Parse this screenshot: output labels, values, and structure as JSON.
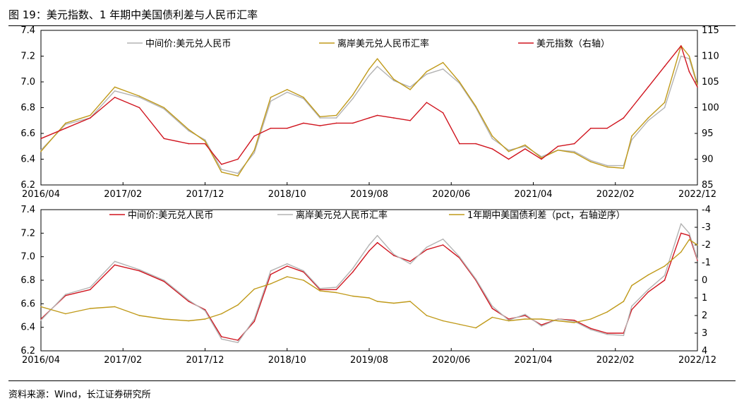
{
  "figure": {
    "title": "图 19：美元指数、1 年期中美国债利差与人民币汇率",
    "source": "资料来源：Wind，长江证券研究所"
  },
  "chart_data": [
    {
      "type": "line",
      "title": "",
      "x_ticks": [
        "2016/04",
        "2017/02",
        "2017/12",
        "2018/10",
        "2019/08",
        "2020/06",
        "2021/04",
        "2022/02",
        "2022/12"
      ],
      "x_range": [
        "2016/04",
        "2022/12"
      ],
      "y_left": {
        "ticks": [
          6.2,
          6.4,
          6.6,
          6.8,
          7.0,
          7.2,
          7.4
        ],
        "range": [
          6.2,
          7.4
        ]
      },
      "y_right": {
        "ticks": [
          85,
          90,
          95,
          100,
          105,
          110,
          115
        ],
        "range": [
          85,
          115
        ]
      },
      "legend_position": "top",
      "grid": false,
      "series": [
        {
          "name": "中间价:美元兑人民币",
          "color": "#b3b3b3",
          "axis": "left",
          "x": [
            "2016/04",
            "2016/07",
            "2016/10",
            "2017/01",
            "2017/04",
            "2017/07",
            "2017/10",
            "2017/12",
            "2018/02",
            "2018/04",
            "2018/06",
            "2018/08",
            "2018/10",
            "2018/12",
            "2019/02",
            "2019/04",
            "2019/06",
            "2019/08",
            "2019/09",
            "2019/11",
            "2020/01",
            "2020/03",
            "2020/05",
            "2020/07",
            "2020/09",
            "2020/11",
            "2021/01",
            "2021/03",
            "2021/05",
            "2021/07",
            "2021/09",
            "2021/11",
            "2022/01",
            "2022/03",
            "2022/04",
            "2022/06",
            "2022/08",
            "2022/10",
            "2022/11",
            "2022/12"
          ],
          "y": [
            6.47,
            6.67,
            6.72,
            6.93,
            6.88,
            6.79,
            6.62,
            6.55,
            6.32,
            6.29,
            6.45,
            6.85,
            6.92,
            6.87,
            6.72,
            6.72,
            6.87,
            7.05,
            7.12,
            7.01,
            6.96,
            7.06,
            7.1,
            6.99,
            6.8,
            6.56,
            6.47,
            6.5,
            6.42,
            6.47,
            6.46,
            6.39,
            6.35,
            6.35,
            6.55,
            6.7,
            6.8,
            7.2,
            7.18,
            6.97
          ]
        },
        {
          "name": "离岸美元兑人民币汇率",
          "color": "#c09a1a",
          "axis": "left",
          "x": [
            "2016/04",
            "2016/07",
            "2016/10",
            "2017/01",
            "2017/04",
            "2017/07",
            "2017/10",
            "2017/12",
            "2018/02",
            "2018/04",
            "2018/06",
            "2018/08",
            "2018/10",
            "2018/12",
            "2019/02",
            "2019/04",
            "2019/06",
            "2019/08",
            "2019/09",
            "2019/11",
            "2020/01",
            "2020/03",
            "2020/05",
            "2020/07",
            "2020/09",
            "2020/11",
            "2021/01",
            "2021/03",
            "2021/05",
            "2021/07",
            "2021/09",
            "2021/11",
            "2022/01",
            "2022/03",
            "2022/04",
            "2022/06",
            "2022/08",
            "2022/10",
            "2022/11",
            "2022/12"
          ],
          "y": [
            6.46,
            6.68,
            6.74,
            6.96,
            6.89,
            6.8,
            6.63,
            6.54,
            6.3,
            6.27,
            6.47,
            6.88,
            6.94,
            6.88,
            6.73,
            6.74,
            6.9,
            7.1,
            7.18,
            7.02,
            6.94,
            7.08,
            7.15,
            7.0,
            6.81,
            6.58,
            6.46,
            6.51,
            6.41,
            6.47,
            6.45,
            6.38,
            6.34,
            6.33,
            6.58,
            6.72,
            6.84,
            7.28,
            7.2,
            6.98
          ]
        },
        {
          "name": "美元指数（右轴）",
          "color": "#d0141e",
          "axis": "right",
          "x": [
            "2016/04",
            "2016/07",
            "2016/10",
            "2017/01",
            "2017/04",
            "2017/07",
            "2017/10",
            "2017/12",
            "2018/02",
            "2018/04",
            "2018/06",
            "2018/08",
            "2018/10",
            "2018/12",
            "2019/02",
            "2019/04",
            "2019/06",
            "2019/08",
            "2019/09",
            "2019/11",
            "2020/01",
            "2020/03",
            "2020/05",
            "2020/07",
            "2020/09",
            "2020/11",
            "2021/01",
            "2021/03",
            "2021/05",
            "2021/07",
            "2021/09",
            "2021/11",
            "2022/01",
            "2022/03",
            "2022/04",
            "2022/06",
            "2022/08",
            "2022/10",
            "2022/11",
            "2022/12"
          ],
          "y": [
            94,
            96,
            98,
            102,
            100,
            94,
            93,
            93,
            89,
            90,
            94.5,
            96,
            96,
            97,
            96.5,
            97,
            97,
            98,
            98.5,
            98,
            97.5,
            101,
            99,
            93,
            93,
            92,
            90,
            92,
            90,
            92.5,
            93,
            96,
            96,
            98,
            100,
            104,
            108,
            112,
            107,
            104
          ]
        },
        {
          "type": "note",
          "name": ""
        }
      ]
    },
    {
      "type": "line",
      "title": "",
      "x_ticks": [
        "2016/04",
        "2017/02",
        "2017/12",
        "2018/10",
        "2019/08",
        "2020/06",
        "2021/04",
        "2022/02",
        "2022/12"
      ],
      "x_range": [
        "2016/04",
        "2022/12"
      ],
      "y_left": {
        "ticks": [
          6.2,
          6.4,
          6.6,
          6.8,
          7.0,
          7.2,
          7.4
        ],
        "range": [
          6.2,
          7.4
        ]
      },
      "y_right": {
        "ticks": [
          -4,
          -3,
          -2,
          -1,
          0,
          1,
          2,
          3,
          4
        ],
        "range": [
          -4,
          4
        ],
        "inverted": true
      },
      "legend_position": "top",
      "grid": false,
      "series": [
        {
          "name": "中间价:美元兑人民币",
          "color": "#d0141e",
          "axis": "left",
          "x": [
            "2016/04",
            "2016/07",
            "2016/10",
            "2017/01",
            "2017/04",
            "2017/07",
            "2017/10",
            "2017/12",
            "2018/02",
            "2018/04",
            "2018/06",
            "2018/08",
            "2018/10",
            "2018/12",
            "2019/02",
            "2019/04",
            "2019/06",
            "2019/08",
            "2019/09",
            "2019/11",
            "2020/01",
            "2020/03",
            "2020/05",
            "2020/07",
            "2020/09",
            "2020/11",
            "2021/01",
            "2021/03",
            "2021/05",
            "2021/07",
            "2021/09",
            "2021/11",
            "2022/01",
            "2022/03",
            "2022/04",
            "2022/06",
            "2022/08",
            "2022/10",
            "2022/11",
            "2022/12"
          ],
          "y": [
            6.47,
            6.67,
            6.72,
            6.93,
            6.88,
            6.79,
            6.62,
            6.55,
            6.32,
            6.29,
            6.45,
            6.85,
            6.92,
            6.87,
            6.72,
            6.72,
            6.87,
            7.05,
            7.12,
            7.01,
            6.96,
            7.06,
            7.1,
            6.99,
            6.8,
            6.56,
            6.47,
            6.5,
            6.42,
            6.47,
            6.46,
            6.39,
            6.35,
            6.35,
            6.55,
            6.7,
            6.8,
            7.2,
            7.18,
            6.97
          ]
        },
        {
          "name": "离岸美元兑人民币汇率",
          "color": "#b3b3b3",
          "axis": "left",
          "x": [
            "2016/04",
            "2016/07",
            "2016/10",
            "2017/01",
            "2017/04",
            "2017/07",
            "2017/10",
            "2017/12",
            "2018/02",
            "2018/04",
            "2018/06",
            "2018/08",
            "2018/10",
            "2018/12",
            "2019/02",
            "2019/04",
            "2019/06",
            "2019/08",
            "2019/09",
            "2019/11",
            "2020/01",
            "2020/03",
            "2020/05",
            "2020/07",
            "2020/09",
            "2020/11",
            "2021/01",
            "2021/03",
            "2021/05",
            "2021/07",
            "2021/09",
            "2021/11",
            "2022/01",
            "2022/03",
            "2022/04",
            "2022/06",
            "2022/08",
            "2022/10",
            "2022/11",
            "2022/12"
          ],
          "y": [
            6.46,
            6.68,
            6.74,
            6.96,
            6.89,
            6.8,
            6.63,
            6.54,
            6.3,
            6.27,
            6.47,
            6.88,
            6.94,
            6.88,
            6.73,
            6.74,
            6.9,
            7.1,
            7.18,
            7.02,
            6.94,
            7.08,
            7.15,
            7.0,
            6.81,
            6.58,
            6.46,
            6.51,
            6.41,
            6.47,
            6.45,
            6.38,
            6.34,
            6.33,
            6.58,
            6.72,
            6.84,
            7.28,
            7.2,
            6.98
          ]
        },
        {
          "name": "1年期中美国债利差（pct，右轴逆序）",
          "color": "#c09a1a",
          "axis": "right",
          "x": [
            "2016/04",
            "2016/07",
            "2016/10",
            "2017/01",
            "2017/04",
            "2017/07",
            "2017/10",
            "2017/12",
            "2018/02",
            "2018/04",
            "2018/06",
            "2018/08",
            "2018/10",
            "2018/12",
            "2019/02",
            "2019/04",
            "2019/06",
            "2019/08",
            "2019/09",
            "2019/11",
            "2020/01",
            "2020/03",
            "2020/05",
            "2020/07",
            "2020/09",
            "2020/11",
            "2021/01",
            "2021/03",
            "2021/05",
            "2021/07",
            "2021/09",
            "2021/11",
            "2022/01",
            "2022/03",
            "2022/04",
            "2022/06",
            "2022/08",
            "2022/10",
            "2022/11",
            "2022/12"
          ],
          "y": [
            1.5,
            1.9,
            1.6,
            1.5,
            2.0,
            2.2,
            2.3,
            2.2,
            1.9,
            1.4,
            0.5,
            0.2,
            -0.2,
            0.0,
            0.6,
            0.7,
            0.9,
            1.0,
            1.2,
            1.3,
            1.2,
            2.0,
            2.3,
            2.5,
            2.7,
            2.1,
            2.3,
            2.2,
            2.2,
            2.3,
            2.4,
            2.2,
            1.8,
            1.2,
            0.3,
            -0.3,
            -0.8,
            -1.6,
            -2.3,
            -2.0
          ]
        }
      ]
    }
  ]
}
